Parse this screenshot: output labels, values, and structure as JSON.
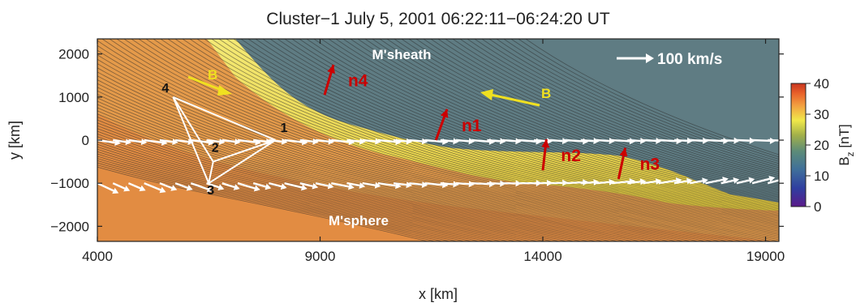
{
  "chart_data": {
    "type": "heatmap",
    "title": "Cluster−1 July 5, 2001   06:22:11−06:24:20 UT",
    "xlabel": "x [km]",
    "ylabel": "y [km]",
    "xlim": [
      4000,
      19300
    ],
    "ylim": [
      -2350,
      2350
    ],
    "x_ticks": [
      4000,
      9000,
      14000,
      19000
    ],
    "x_tick_labels": [
      "4000",
      "9000",
      "14000",
      "19000"
    ],
    "y_ticks": [
      2000,
      1000,
      0,
      -1000,
      -2000
    ],
    "y_tick_labels": [
      "2000",
      "1000",
      "0",
      "−1000",
      "−2000"
    ],
    "colorbar": {
      "label": "B_z [nT]",
      "ticks": [
        40,
        30,
        20,
        10,
        0
      ],
      "tick_labels": [
        "40",
        "30",
        "20",
        "10",
        "0"
      ],
      "range": [
        0,
        40
      ],
      "stops": [
        "#5a1a8a",
        "#2f3fa0",
        "#3f6f9a",
        "#5d8c78",
        "#a2b04a",
        "#f0e84a",
        "#f2a040",
        "#e8602a",
        "#c8341e"
      ]
    },
    "annotations": {
      "msheath": "M'sheath",
      "msphere": "M'sphere",
      "velocity_scale": "100 km/s",
      "b_left": "B",
      "b_right": "B"
    },
    "normals": [
      {
        "label": "n4",
        "x": 9100,
        "y": 1050,
        "dx": 200,
        "dy": 700
      },
      {
        "label": "n1",
        "x": 11600,
        "y": 0,
        "dx": 250,
        "dy": 720
      },
      {
        "label": "n2",
        "x": 14000,
        "y": -700,
        "dx": 80,
        "dy": 720
      },
      {
        "label": "n3",
        "x": 15700,
        "y": -900,
        "dx": 150,
        "dy": 720
      }
    ],
    "spacecraft": [
      {
        "label": "1",
        "x": 8000,
        "y": 0
      },
      {
        "label": "2",
        "x": 6600,
        "y": -500
      },
      {
        "label": "3",
        "x": 6500,
        "y": -1000
      },
      {
        "label": "4",
        "x": 5700,
        "y": 1000
      }
    ],
    "velocity_rows": [
      {
        "y": 0,
        "start_x": 4000,
        "end_x": 19200,
        "step": 350,
        "angle_start": -8,
        "angle_end": -2
      },
      {
        "y": -1000,
        "start_x": 4000,
        "end_x": 19200,
        "step": 350,
        "angle_start": -25,
        "angle_end": 15
      }
    ],
    "colors": {
      "normals": "#cc0000",
      "b_vectors": "#f0e020",
      "white": "#ffffff"
    }
  }
}
